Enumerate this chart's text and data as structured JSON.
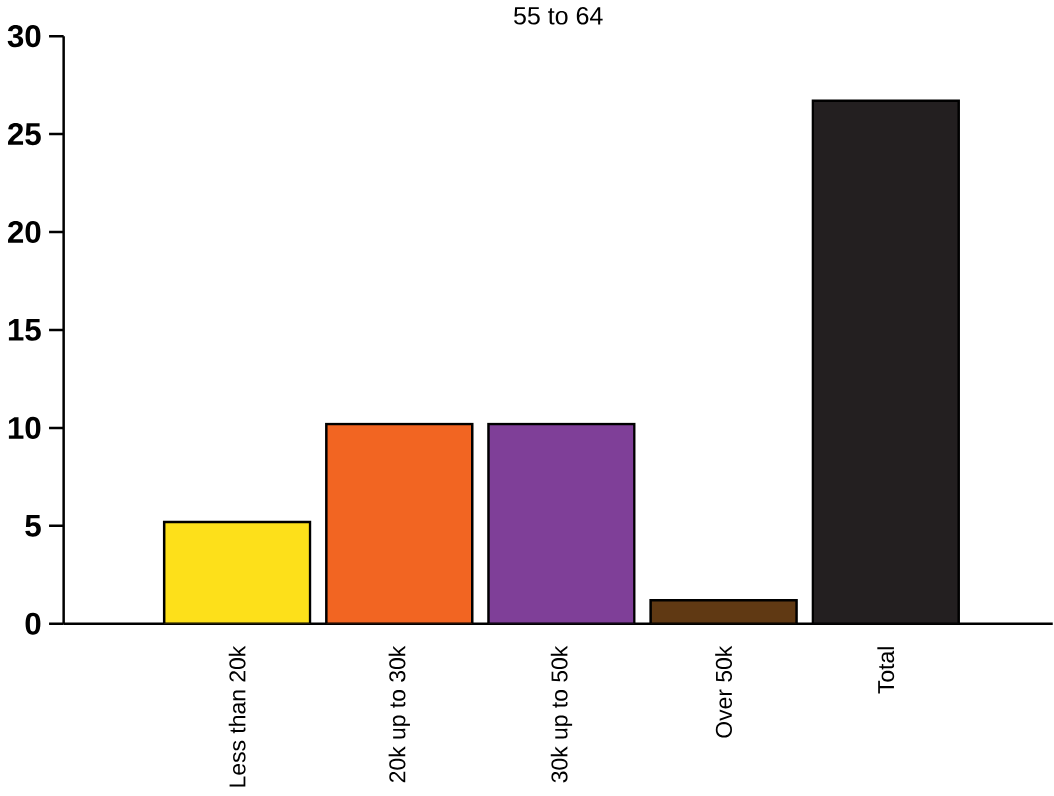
{
  "chart_data": {
    "type": "bar",
    "title": "55 to 64",
    "categories": [
      "Less than 20k",
      "20k up to 30k",
      "30k up to 50k",
      "Over 50k",
      "Total"
    ],
    "values": [
      5.2,
      10.2,
      10.2,
      1.2,
      26.7
    ],
    "colors": [
      "#fde01a",
      "#f26522",
      "#7f3f98",
      "#603913",
      "#231f20"
    ],
    "ylim": [
      0,
      30
    ],
    "yticks": [
      0,
      5,
      10,
      15,
      20,
      25,
      30
    ]
  }
}
